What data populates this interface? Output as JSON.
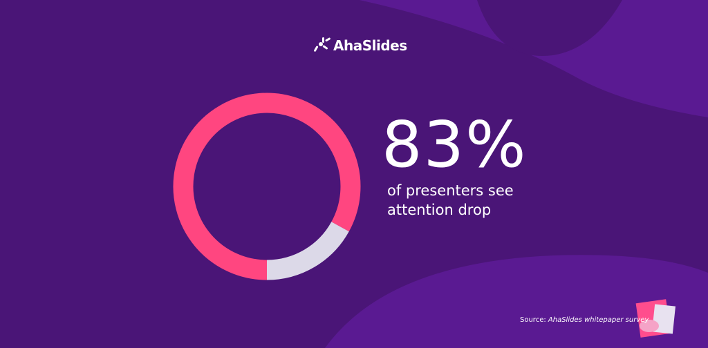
{
  "brand": "AhaSlides",
  "chart_data": {
    "type": "donut",
    "values": [
      83,
      17
    ],
    "value_labels": [
      "83%",
      null
    ],
    "colors": [
      "#ff4680",
      "#dcd9e8"
    ],
    "caption": "of presenters see attention drop"
  },
  "footer": {
    "source_label": "Source:",
    "source": "AhaSlides whitepaper survey"
  }
}
